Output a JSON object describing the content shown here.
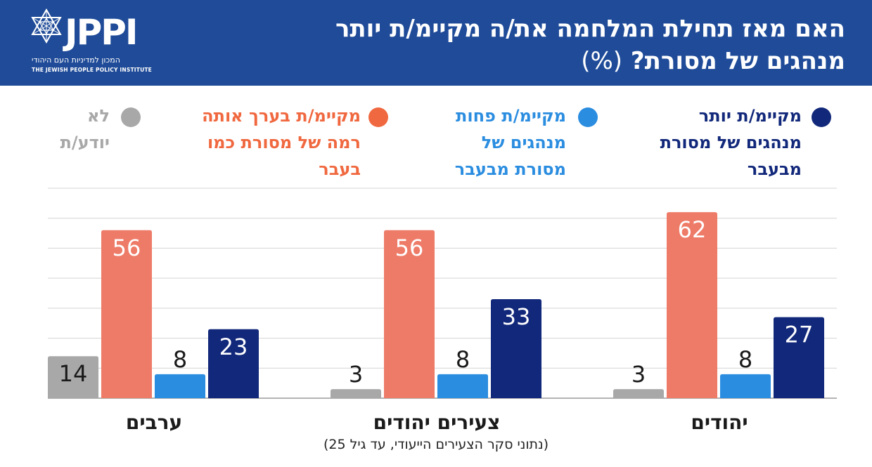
{
  "header": {
    "title_line1": "האם מאז תחילת המלחמה את/ה מקיימ/ת יותר",
    "title_line2": "מנהגים של מסורת?",
    "title_unit": "(%)",
    "background_color": "#1f4b98"
  },
  "logo": {
    "text": "JPPI",
    "subtitle_hebrew": "המכון למדיניות העם היהודי",
    "subtitle_english": "THE JEWISH PEOPLE POLICY INSTITUTE"
  },
  "legend": [
    {
      "series": "more",
      "lines": [
        "מקיימ/ת יותר",
        "מנהגים של מסורת",
        "מבעבר"
      ],
      "color": "#12287a"
    },
    {
      "series": "less",
      "lines": [
        "מקיימ/ת פחות",
        "מנהגים של",
        "מסורת מבעבר"
      ],
      "color": "#2b8de0"
    },
    {
      "series": "same",
      "lines": [
        "מקיימ/ת בערך אותה",
        "רמה של מסורת כמו",
        "בעבר"
      ],
      "color": "#f0683f"
    },
    {
      "series": "dontknow",
      "lines": [
        "לא",
        "יודע/ת"
      ],
      "color": "#a8a8a8"
    }
  ],
  "chart_data": {
    "type": "bar",
    "title": "האם מאז תחילת המלחמה את/ה מקיימ/ת יותר מנהגים של מסורת? (%)",
    "categories": [
      "יהודים",
      "צעירים יהודים",
      "ערבים"
    ],
    "series": [
      {
        "name": "מקיימ/ת יותר מנהגים של מסורת מבעבר",
        "values": [
          27,
          33,
          23
        ],
        "color": "#12287a"
      },
      {
        "name": "מקיימ/ת פחות מנהגים של מסורת מבעבר",
        "values": [
          8,
          8,
          8
        ],
        "color": "#2b8de0"
      },
      {
        "name": "מקיימ/ת בערך אותה רמה של מסורת כמו בעבר",
        "values": [
          62,
          56,
          56
        ],
        "color": "#ee7b68"
      },
      {
        "name": "לא יודע/ת",
        "values": [
          3,
          3,
          14
        ],
        "color": "#a8a8a8"
      }
    ],
    "ylim": [
      0,
      70
    ],
    "grid": true,
    "xlabel": "",
    "ylabel": ""
  },
  "footnote": "(נתוני סקר הצעירים הייעודי, עד גיל 25)"
}
